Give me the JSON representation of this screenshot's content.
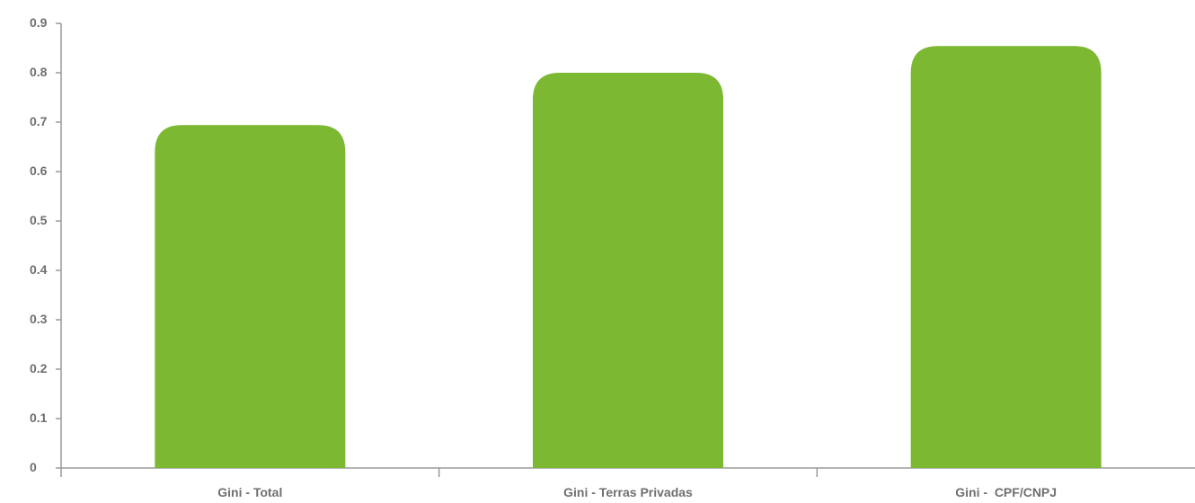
{
  "chart_data": {
    "type": "bar",
    "categories": [
      "Gini - Total",
      "Gini - Terras Privadas",
      "Gini -  CPF/CNPJ"
    ],
    "values": [
      0.694,
      0.8,
      0.854
    ],
    "ylim": [
      0,
      0.9
    ],
    "yticks": [
      "0",
      "0.1",
      "0.2",
      "0.3",
      "0.4",
      "0.5",
      "0.6",
      "0.7",
      "0.8",
      "0.9"
    ],
    "title": "",
    "xlabel": "",
    "ylabel": "",
    "grid": false,
    "colors": {
      "bar": "#7cb831",
      "axis": "#9a9a9a",
      "text": "#6f6f6f"
    }
  }
}
